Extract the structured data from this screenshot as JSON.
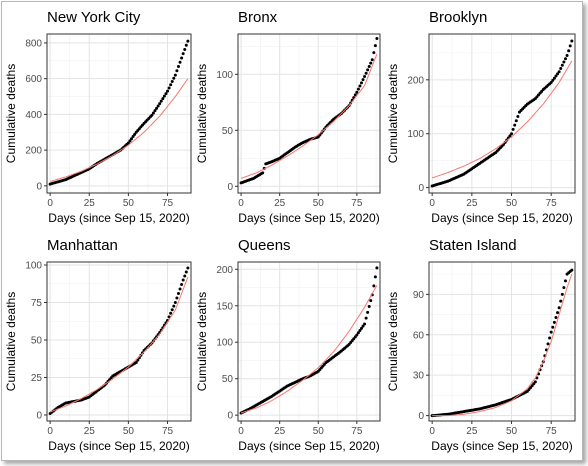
{
  "chart_data": [
    {
      "type": "scatter",
      "title": "New York City",
      "xlabel": "Days (since Sep 15, 2020)",
      "ylabel": "Cumulative deaths",
      "xlim": [
        -2,
        90
      ],
      "ylim": [
        -40,
        850
      ],
      "xticks": [
        0,
        25,
        50,
        75
      ],
      "yticks": [
        0,
        200,
        400,
        600,
        800
      ],
      "grid": true,
      "legend": "none",
      "series": [
        {
          "kind": "points",
          "color": "#000000",
          "knots": [
            [
              0,
              10
            ],
            [
              10,
              35
            ],
            [
              20,
              75
            ],
            [
              25,
              95
            ],
            [
              30,
              125
            ],
            [
              35,
              150
            ],
            [
              40,
              175
            ],
            [
              45,
              200
            ],
            [
              50,
              240
            ],
            [
              55,
              300
            ],
            [
              60,
              350
            ],
            [
              65,
              395
            ],
            [
              70,
              460
            ],
            [
              75,
              530
            ],
            [
              80,
              620
            ],
            [
              85,
              740
            ],
            [
              88,
              810
            ]
          ]
        },
        {
          "kind": "fit",
          "color": "#f8766d",
          "knots": [
            [
              0,
              25
            ],
            [
              10,
              50
            ],
            [
              20,
              82
            ],
            [
              30,
              122
            ],
            [
              40,
              170
            ],
            [
              50,
              228
            ],
            [
              60,
              300
            ],
            [
              70,
              390
            ],
            [
              80,
              500
            ],
            [
              88,
              600
            ]
          ]
        }
      ]
    },
    {
      "type": "scatter",
      "title": "Bronx",
      "xlabel": "Days (since Sep 15, 2020)",
      "ylabel": "Cumulative deaths",
      "xlim": [
        -2,
        90
      ],
      "ylim": [
        -6,
        136
      ],
      "xticks": [
        0,
        25,
        50,
        75
      ],
      "yticks": [
        0,
        50,
        100
      ],
      "grid": true,
      "legend": "none",
      "series": [
        {
          "kind": "points",
          "color": "#000000",
          "knots": [
            [
              0,
              3
            ],
            [
              8,
              7
            ],
            [
              14,
              12
            ],
            [
              16,
              20
            ],
            [
              20,
              22
            ],
            [
              25,
              25
            ],
            [
              30,
              30
            ],
            [
              35,
              35
            ],
            [
              40,
              39
            ],
            [
              45,
              42
            ],
            [
              50,
              44
            ],
            [
              55,
              53
            ],
            [
              60,
              60
            ],
            [
              65,
              65
            ],
            [
              70,
              72
            ],
            [
              75,
              84
            ],
            [
              80,
              98
            ],
            [
              85,
              113
            ],
            [
              88,
              132
            ]
          ]
        },
        {
          "kind": "fit",
          "color": "#f8766d",
          "knots": [
            [
              0,
              7
            ],
            [
              10,
              12
            ],
            [
              20,
              19
            ],
            [
              30,
              27
            ],
            [
              40,
              36
            ],
            [
              50,
              46
            ],
            [
              60,
              58
            ],
            [
              70,
              72
            ],
            [
              80,
              90
            ],
            [
              88,
              118
            ]
          ]
        }
      ]
    },
    {
      "type": "scatter",
      "title": "Brooklyn",
      "xlabel": "Days (since Sep 15, 2020)",
      "ylabel": "Cumulative deaths",
      "xlim": [
        -2,
        90
      ],
      "ylim": [
        -10,
        285
      ],
      "xticks": [
        0,
        25,
        50,
        75
      ],
      "yticks": [
        0,
        100,
        200
      ],
      "grid": true,
      "legend": "none",
      "series": [
        {
          "kind": "points",
          "color": "#000000",
          "knots": [
            [
              0,
              3
            ],
            [
              10,
              12
            ],
            [
              20,
              25
            ],
            [
              30,
              45
            ],
            [
              40,
              65
            ],
            [
              45,
              80
            ],
            [
              50,
              100
            ],
            [
              55,
              140
            ],
            [
              60,
              155
            ],
            [
              65,
              165
            ],
            [
              70,
              182
            ],
            [
              75,
              195
            ],
            [
              80,
              215
            ],
            [
              85,
              245
            ],
            [
              88,
              272
            ]
          ]
        },
        {
          "kind": "fit",
          "color": "#f8766d",
          "knots": [
            [
              0,
              18
            ],
            [
              10,
              28
            ],
            [
              20,
              40
            ],
            [
              30,
              54
            ],
            [
              40,
              72
            ],
            [
              50,
              94
            ],
            [
              60,
              122
            ],
            [
              70,
              155
            ],
            [
              80,
              195
            ],
            [
              88,
              235
            ]
          ]
        }
      ]
    },
    {
      "type": "scatter",
      "title": "Manhattan",
      "xlabel": "Days (since Sep 15, 2020)",
      "ylabel": "Cumulative deaths",
      "xlim": [
        -2,
        90
      ],
      "ylim": [
        -4,
        102
      ],
      "xticks": [
        0,
        25,
        50,
        75
      ],
      "yticks": [
        0,
        25,
        50,
        75,
        100
      ],
      "grid": true,
      "legend": "none",
      "series": [
        {
          "kind": "points",
          "color": "#000000",
          "knots": [
            [
              0,
              1
            ],
            [
              5,
              5
            ],
            [
              10,
              8
            ],
            [
              15,
              9
            ],
            [
              20,
              10
            ],
            [
              25,
              12
            ],
            [
              30,
              16
            ],
            [
              35,
              20
            ],
            [
              40,
              26
            ],
            [
              45,
              29
            ],
            [
              50,
              32
            ],
            [
              55,
              35
            ],
            [
              60,
              43
            ],
            [
              65,
              48
            ],
            [
              70,
              55
            ],
            [
              75,
              63
            ],
            [
              80,
              75
            ],
            [
              85,
              90
            ],
            [
              88,
              98
            ]
          ]
        },
        {
          "kind": "fit",
          "color": "#f8766d",
          "knots": [
            [
              0,
              2
            ],
            [
              10,
              6
            ],
            [
              20,
              11
            ],
            [
              30,
              17
            ],
            [
              40,
              24
            ],
            [
              50,
              32
            ],
            [
              60,
              42
            ],
            [
              70,
              54
            ],
            [
              80,
              70
            ],
            [
              88,
              92
            ]
          ]
        }
      ]
    },
    {
      "type": "scatter",
      "title": "Queens",
      "xlabel": "Days (since Sep 15, 2020)",
      "ylabel": "Cumulative deaths",
      "xlim": [
        -2,
        90
      ],
      "ylim": [
        -8,
        210
      ],
      "xticks": [
        0,
        25,
        50,
        75
      ],
      "yticks": [
        0,
        50,
        100,
        150,
        200
      ],
      "grid": true,
      "legend": "none",
      "series": [
        {
          "kind": "points",
          "color": "#000000",
          "knots": [
            [
              0,
              3
            ],
            [
              5,
              8
            ],
            [
              10,
              14
            ],
            [
              15,
              20
            ],
            [
              20,
              26
            ],
            [
              25,
              33
            ],
            [
              30,
              40
            ],
            [
              35,
              45
            ],
            [
              40,
              50
            ],
            [
              45,
              54
            ],
            [
              50,
              60
            ],
            [
              55,
              72
            ],
            [
              60,
              80
            ],
            [
              65,
              88
            ],
            [
              70,
              97
            ],
            [
              75,
              110
            ],
            [
              80,
              125
            ],
            [
              85,
              165
            ],
            [
              88,
              202
            ]
          ]
        },
        {
          "kind": "fit",
          "color": "#f8766d",
          "knots": [
            [
              0,
              3
            ],
            [
              10,
              10
            ],
            [
              20,
              20
            ],
            [
              30,
              33
            ],
            [
              40,
              48
            ],
            [
              50,
              65
            ],
            [
              60,
              87
            ],
            [
              70,
              115
            ],
            [
              80,
              148
            ],
            [
              88,
              178
            ]
          ]
        }
      ]
    },
    {
      "type": "scatter",
      "title": "Staten Island",
      "xlabel": "Days (since Sep 15, 2020)",
      "ylabel": "Cumulative deaths",
      "xlim": [
        -2,
        90
      ],
      "ylim": [
        -4,
        114
      ],
      "xticks": [
        0,
        25,
        50,
        75
      ],
      "yticks": [
        0,
        30,
        60,
        90
      ],
      "grid": true,
      "legend": "none",
      "series": [
        {
          "kind": "points",
          "color": "#000000",
          "knots": [
            [
              0,
              0
            ],
            [
              10,
              1
            ],
            [
              20,
              3
            ],
            [
              30,
              5
            ],
            [
              40,
              8
            ],
            [
              45,
              10
            ],
            [
              50,
              12
            ],
            [
              55,
              15
            ],
            [
              60,
              18
            ],
            [
              65,
              25
            ],
            [
              70,
              40
            ],
            [
              75,
              62
            ],
            [
              80,
              80
            ],
            [
              85,
              105
            ],
            [
              88,
              108
            ]
          ]
        },
        {
          "kind": "fit",
          "color": "#f8766d",
          "knots": [
            [
              0,
              0
            ],
            [
              10,
              0
            ],
            [
              20,
              1
            ],
            [
              30,
              3
            ],
            [
              40,
              6
            ],
            [
              50,
              11
            ],
            [
              60,
              20
            ],
            [
              65,
              28
            ],
            [
              70,
              40
            ],
            [
              75,
              55
            ],
            [
              80,
              75
            ],
            [
              85,
              95
            ],
            [
              88,
              105
            ]
          ]
        }
      ]
    }
  ]
}
